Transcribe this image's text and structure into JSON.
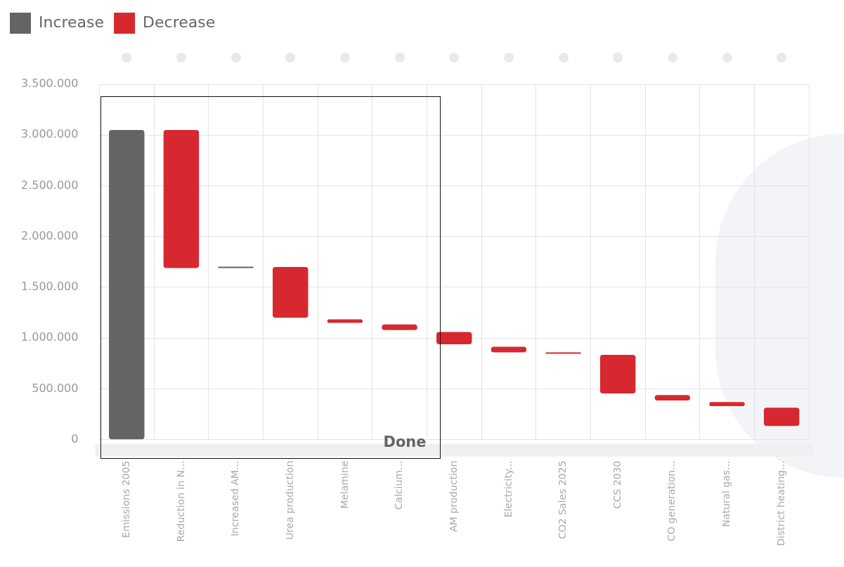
{
  "chart_data": {
    "type": "bar",
    "categories": [
      "Emissions 2005",
      "Reduction in N...",
      "Increased AM...",
      "Urea production",
      "Melamine",
      "Calcium...",
      "AM production",
      "Electricity...",
      "CO2 Sales 2025",
      "CCS 2030",
      "CO generation...",
      "Natural gas...",
      "District heating..."
    ],
    "series": [
      {
        "name": "Increase",
        "color": "#636466",
        "values": [
          3050000,
          null,
          10000,
          null,
          null,
          null,
          null,
          null,
          null,
          null,
          null,
          null,
          null
        ],
        "base": [
          0,
          null,
          1690000,
          null,
          null,
          null,
          null,
          null,
          null,
          null,
          null,
          null,
          null
        ]
      },
      {
        "name": "Decrease",
        "color": "#d7282f",
        "values": [
          null,
          1360000,
          null,
          500000,
          35000,
          55000,
          120000,
          55000,
          5000,
          380000,
          55000,
          40000,
          180000
        ],
        "base": [
          null,
          1690000,
          null,
          1200000,
          1150000,
          1080000,
          940000,
          860000,
          845000,
          455000,
          385000,
          330000,
          135000
        ]
      }
    ],
    "ylim": [
      0,
      3500000
    ],
    "yticks": [
      {
        "value": 0,
        "label": "0"
      },
      {
        "value": 500000,
        "label": "500.000"
      },
      {
        "value": 1000000,
        "label": "1.000.000"
      },
      {
        "value": 1500000,
        "label": "1.500.000"
      },
      {
        "value": 2000000,
        "label": "2.000.000"
      },
      {
        "value": 2500000,
        "label": "2.500.000"
      },
      {
        "value": 3000000,
        "label": "3.000.000"
      },
      {
        "value": 3500000,
        "label": "3.500.000"
      }
    ],
    "grid": true,
    "legend": "top left",
    "annotations": [
      "Done"
    ]
  }
}
